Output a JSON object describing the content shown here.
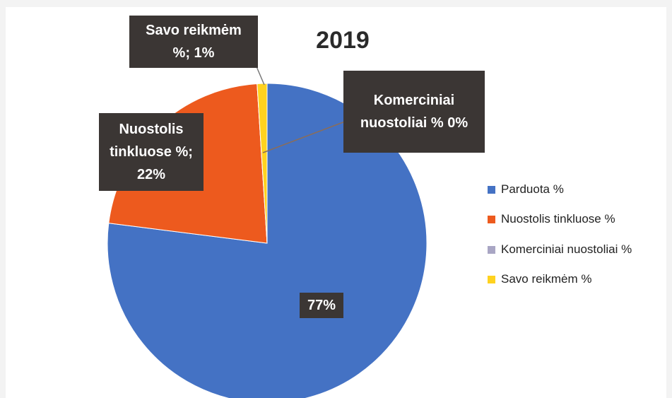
{
  "chart_data": {
    "type": "pie",
    "title": "2019",
    "categories": [
      "Parduota %",
      "Nuostolis tinkluose %",
      "Komerciniai nuostoliai %",
      "Savo reikmėm %"
    ],
    "values": [
      77,
      22,
      0,
      1
    ],
    "value_labels": [
      "77%",
      "Nuostolis tinkluose %; 22%",
      "Komerciniai nuostoliai % 0%",
      "Savo reikmėm %; 1%"
    ],
    "colors": [
      "#4472c4",
      "#ed5a1e",
      "#a9a6c4",
      "#ffd21f"
    ],
    "legend": "right"
  }
}
